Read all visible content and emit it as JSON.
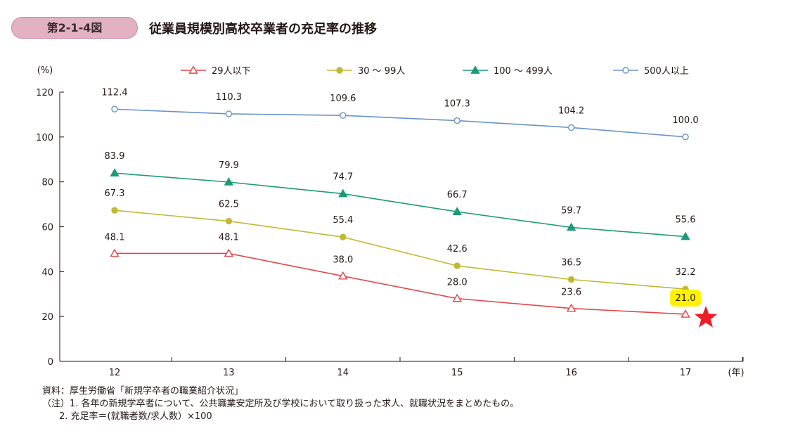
{
  "figure": {
    "number": "第2-1-4図",
    "title": "従業員規模別高校卒業者の充足率の推移"
  },
  "notes": {
    "source": "資料：厚生労働省「新規学卒者の職業紹介状況」",
    "note1": "（注）1. 各年の新規学卒者について、公共職業安定所及び学校において取り扱った求人、就職状況をまとめたもの。",
    "note2": "2. 充足率＝(就職者数/求人数）×100"
  },
  "chart_data": {
    "type": "line",
    "ylabel": "(%)",
    "xlabel": "(年)",
    "categories": [
      "12",
      "13",
      "14",
      "15",
      "16",
      "17"
    ],
    "ylim": [
      0,
      120
    ],
    "yticks": [
      0,
      20,
      40,
      60,
      80,
      100,
      120
    ],
    "legend_position": "top",
    "grid": false,
    "series": [
      {
        "name": "29人以下",
        "values": [
          48.1,
          48.1,
          38.0,
          28.0,
          23.6,
          21.0
        ],
        "labels": [
          "48.1",
          "48.1",
          "38.0",
          "28.0",
          "23.6",
          "21.0"
        ],
        "color": "#e0474a",
        "marker": "triangle-open",
        "highlight_last": true
      },
      {
        "name": "30 ～ 99人",
        "values": [
          67.3,
          62.5,
          55.4,
          42.6,
          36.5,
          32.2
        ],
        "labels": [
          "67.3",
          "62.5",
          "55.4",
          "42.6",
          "36.5",
          "32.2"
        ],
        "color": "#c2b833",
        "marker": "circle-filled"
      },
      {
        "name": "100 ～ 499人",
        "values": [
          83.9,
          79.9,
          74.7,
          66.7,
          59.7,
          55.6
        ],
        "labels": [
          "83.9",
          "79.9",
          "74.7",
          "66.7",
          "59.7",
          "55.6"
        ],
        "color": "#1c9a78",
        "marker": "triangle-filled"
      },
      {
        "name": "500人以上",
        "values": [
          112.4,
          110.3,
          109.6,
          107.3,
          104.2,
          100.0
        ],
        "labels": [
          "112.4",
          "110.3",
          "109.6",
          "107.3",
          "104.2",
          "100.0"
        ],
        "color": "#6a93c9",
        "marker": "circle-open"
      }
    ],
    "annotations": {
      "highlight_color": "#fff200",
      "star_color": "#ee1c25"
    }
  }
}
